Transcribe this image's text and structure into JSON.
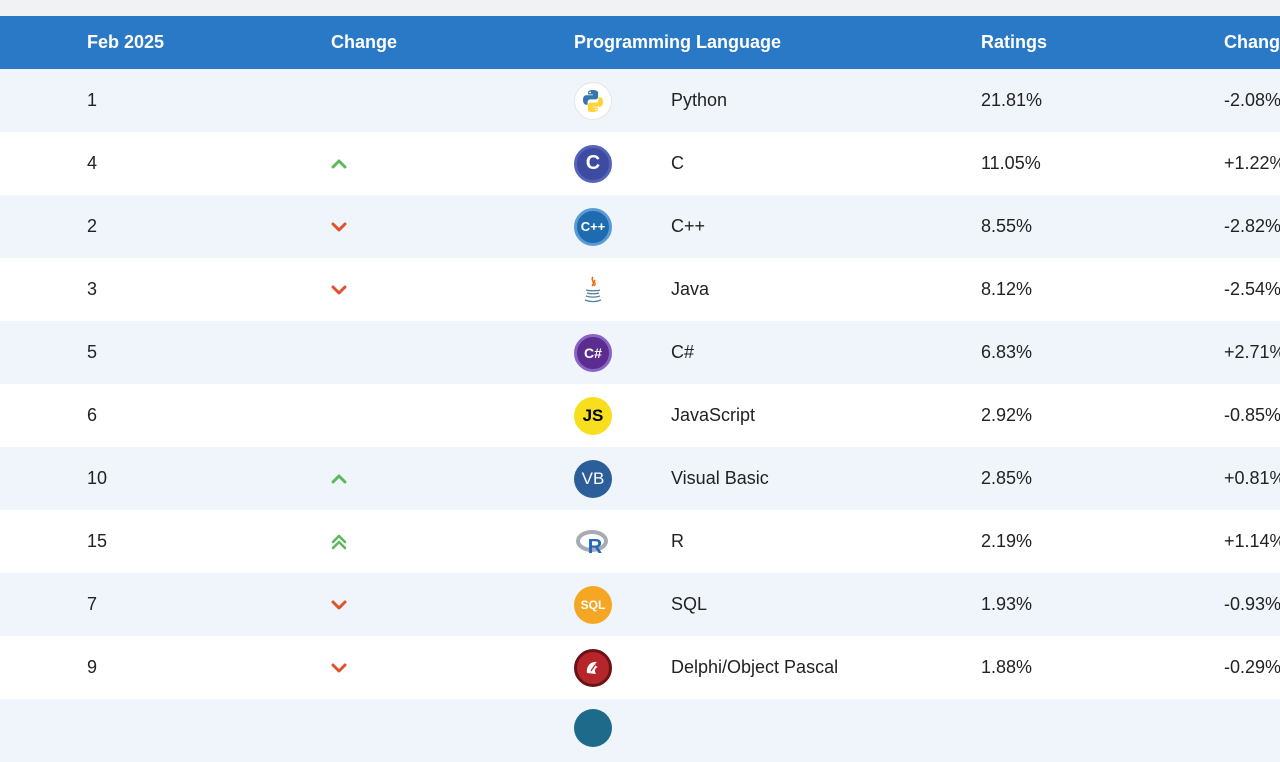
{
  "header": {
    "col_rank": "Feb 2025",
    "col_change": "Change",
    "col_language": "Programming Language",
    "col_ratings": "Ratings",
    "col_change_pct": "Change"
  },
  "rows": [
    {
      "rank": "1",
      "trend": "none",
      "icon": "python-logo-icon",
      "language": "Python",
      "rating": "21.81%",
      "change": "-2.08%"
    },
    {
      "rank": "4",
      "trend": "up",
      "icon": "c-logo-icon",
      "language": "C",
      "rating": "11.05%",
      "change": "+1.22%"
    },
    {
      "rank": "2",
      "trend": "down",
      "icon": "cpp-logo-icon",
      "language": "C++",
      "rating": "8.55%",
      "change": "-2.82%"
    },
    {
      "rank": "3",
      "trend": "down",
      "icon": "java-logo-icon",
      "language": "Java",
      "rating": "8.12%",
      "change": "-2.54%"
    },
    {
      "rank": "5",
      "trend": "none",
      "icon": "csharp-logo-icon",
      "language": "C#",
      "rating": "6.83%",
      "change": "+2.71%"
    },
    {
      "rank": "6",
      "trend": "none",
      "icon": "javascript-logo-icon",
      "language": "JavaScript",
      "rating": "2.92%",
      "change": "-0.85%"
    },
    {
      "rank": "10",
      "trend": "up",
      "icon": "visual-basic-logo-icon",
      "language": "Visual Basic",
      "rating": "2.85%",
      "change": "+0.81%"
    },
    {
      "rank": "15",
      "trend": "double-up",
      "icon": "r-logo-icon",
      "language": "R",
      "rating": "2.19%",
      "change": "+1.14%"
    },
    {
      "rank": "7",
      "trend": "down",
      "icon": "sql-logo-icon",
      "language": "SQL",
      "rating": "1.93%",
      "change": "-0.93%"
    },
    {
      "rank": "9",
      "trend": "down",
      "icon": "delphi-logo-icon",
      "language": "Delphi/Object Pascal",
      "rating": "1.88%",
      "change": "-0.29%"
    }
  ],
  "logos": {
    "c": "C",
    "cpp": "C++",
    "csharp": "C#",
    "js": "JS",
    "vb": "VB",
    "r": "R",
    "sql": "SQL"
  },
  "colors": {
    "header_bg": "#2a79c6",
    "row_alt_bg": "#eff5fb",
    "trend_up": "#5cb85c",
    "trend_down": "#e0522a"
  }
}
